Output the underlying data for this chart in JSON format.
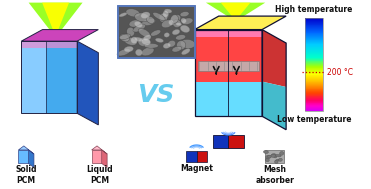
{
  "bg_color": "#ffffff",
  "vs_text": "VS",
  "vs_color": "#66ccee",
  "colorbar": {
    "label_high": "High temperature",
    "label_low": "Low temperature",
    "label_200": "200 °C"
  },
  "left_cube": {
    "front_color": "#55aaff",
    "right_color": "#2266cc",
    "top_color_l": "#cc44aa",
    "top_color_r": "#dd55bb"
  },
  "right_cube": {
    "top_color": "#ffee44",
    "hot_color": "#ff3333",
    "cool_color": "#66ddff",
    "mesh_color": "#aaaaaa",
    "right_color": "#2266cc"
  },
  "legend": {
    "solid_pcm_label": "Solid\nPCM",
    "liquid_pcm_label": "Liquid\nPCM",
    "magnet_label": "Magnet",
    "mesh_label": "Mesh\nabsorber",
    "font_size": 5.5
  }
}
